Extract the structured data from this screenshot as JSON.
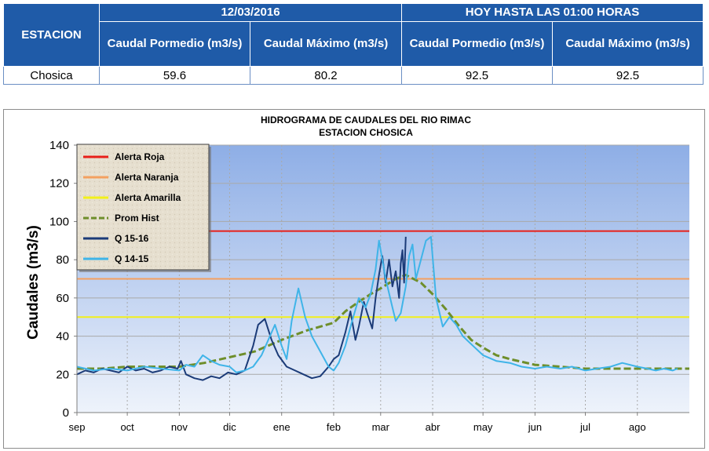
{
  "table": {
    "station_header": "ESTACION",
    "group_date": "12/03/2016",
    "group_today": "HOY HASTA LAS 01:00 HORAS",
    "col_prom": "Caudal Pormedio (m3/s)",
    "col_max": "Caudal Máximo (m3/s)",
    "row": {
      "station": "Chosica",
      "prom_date": "59.6",
      "max_date": "80.2",
      "prom_today": "92.5",
      "max_today": "92.5"
    }
  },
  "chart_data": {
    "type": "line",
    "title": "HIDROGRAMA DE CAUDALES  DEL RIO RIMAC",
    "subtitle": "ESTACION CHOSICA",
    "ylabel": "Caudales (m3/s)",
    "xlabel": "",
    "ylim": [
      0,
      140
    ],
    "xlim": [
      0,
      365
    ],
    "yticks": [
      0,
      20,
      40,
      60,
      80,
      100,
      120,
      140
    ],
    "month_labels": [
      "sep",
      "oct",
      "nov",
      "dic",
      "ene",
      "feb",
      "mar",
      "abr",
      "may",
      "jun",
      "jul",
      "ago"
    ],
    "month_positions": [
      0,
      30,
      61,
      91,
      122,
      153,
      181,
      212,
      242,
      273,
      303,
      334
    ],
    "legend_placement": "top-left",
    "grid": true,
    "series": [
      {
        "name": "Alerta Roja",
        "color": "#e8201a",
        "style": "solid",
        "x": [
          0,
          365
        ],
        "y": [
          95,
          95
        ]
      },
      {
        "name": "Alerta Naranja",
        "color": "#f4a060",
        "style": "solid",
        "x": [
          0,
          365
        ],
        "y": [
          70,
          70
        ]
      },
      {
        "name": "Alerta Amarilla",
        "color": "#f2f01a",
        "style": "solid",
        "x": [
          0,
          365
        ],
        "y": [
          50,
          50
        ]
      },
      {
        "name": "Prom Hist",
        "color": "#6e8e2a",
        "style": "dashed",
        "x": [
          0,
          15,
          30,
          45,
          61,
          76,
          91,
          106,
          122,
          137,
          153,
          160,
          168,
          175,
          181,
          190,
          196,
          205,
          212,
          220,
          228,
          235,
          242,
          250,
          258,
          273,
          288,
          303,
          318,
          334,
          350,
          365
        ],
        "y": [
          23,
          23,
          24,
          24,
          24,
          26,
          29,
          32,
          38,
          43,
          47,
          53,
          58,
          62,
          65,
          70,
          72,
          68,
          62,
          54,
          45,
          38,
          34,
          30,
          28,
          25,
          24,
          23,
          23,
          23,
          23,
          23
        ]
      },
      {
        "name": "Q 15-16",
        "color": "#1b3b78",
        "style": "solid",
        "x": [
          0,
          5,
          10,
          15,
          20,
          25,
          30,
          35,
          40,
          45,
          50,
          55,
          60,
          62,
          65,
          70,
          75,
          80,
          85,
          90,
          95,
          100,
          105,
          108,
          112,
          116,
          120,
          125,
          130,
          135,
          140,
          145,
          150,
          153,
          156,
          160,
          163,
          166,
          168,
          171,
          173,
          176,
          178,
          180,
          182,
          184,
          186,
          188,
          190,
          192,
          193,
          194,
          195,
          196
        ],
        "y": [
          20,
          22,
          21,
          23,
          22,
          21,
          24,
          22,
          23,
          21,
          22,
          24,
          23,
          27,
          20,
          18,
          17,
          19,
          18,
          21,
          20,
          22,
          35,
          46,
          49,
          38,
          30,
          24,
          22,
          20,
          18,
          19,
          24,
          28,
          30,
          42,
          53,
          38,
          45,
          58,
          52,
          44,
          60,
          72,
          82,
          68,
          80,
          66,
          74,
          60,
          78,
          85,
          68,
          92
        ]
      },
      {
        "name": "Q 14-15",
        "color": "#3fb4e8",
        "style": "solid",
        "x": [
          0,
          10,
          20,
          30,
          40,
          50,
          61,
          65,
          70,
          75,
          80,
          85,
          91,
          95,
          100,
          105,
          110,
          115,
          118,
          122,
          125,
          128,
          132,
          136,
          140,
          145,
          150,
          153,
          156,
          160,
          164,
          168,
          172,
          175,
          178,
          180,
          184,
          188,
          190,
          193,
          196,
          198,
          200,
          202,
          205,
          208,
          211,
          214,
          218,
          222,
          226,
          230,
          236,
          242,
          250,
          258,
          265,
          273,
          280,
          288,
          295,
          303,
          310,
          318,
          325,
          334,
          340,
          345,
          350,
          355,
          358
        ],
        "y": [
          24,
          22,
          23,
          22,
          24,
          23,
          22,
          25,
          24,
          30,
          27,
          25,
          24,
          21,
          22,
          24,
          30,
          40,
          46,
          35,
          28,
          48,
          65,
          50,
          40,
          32,
          24,
          22,
          26,
          35,
          48,
          60,
          55,
          62,
          75,
          90,
          70,
          55,
          48,
          52,
          66,
          82,
          88,
          70,
          80,
          90,
          92,
          60,
          45,
          50,
          46,
          40,
          35,
          30,
          27,
          26,
          24,
          23,
          24,
          23,
          24,
          22,
          23,
          24,
          26,
          24,
          23,
          22,
          23,
          22,
          23
        ]
      }
    ]
  }
}
